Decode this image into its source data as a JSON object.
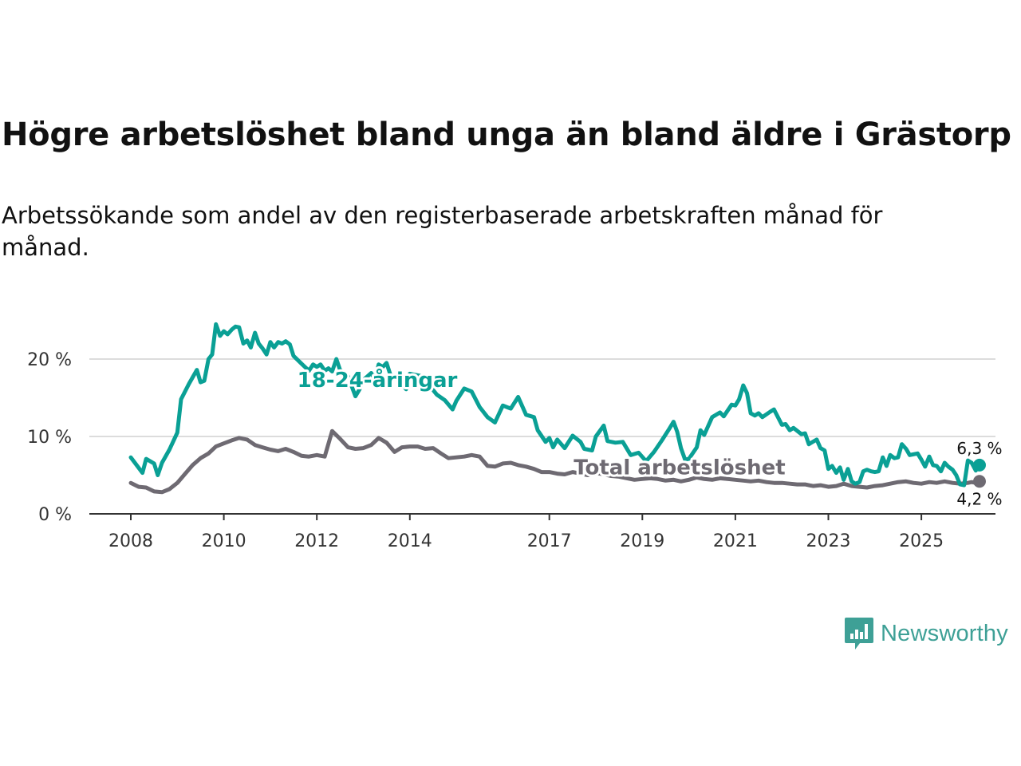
{
  "title": "Högre arbetslöshet bland unga än bland äldre i Grästorp",
  "subtitle": "Arbetssökande som andel av den registerbaserade arbetskraften månad för månad.",
  "brand": "Newsworthy",
  "colors": {
    "youth": "#0aa095",
    "total": "#6e6a72",
    "grid": "#dcdcdc",
    "axis": "#333333",
    "brand": "#3ea096"
  },
  "chart_data": {
    "type": "line",
    "title": "Högre arbetslöshet bland unga än bland äldre i Grästorp",
    "xlabel": "",
    "ylabel": "",
    "x_ticks": [
      "2008",
      "2010",
      "2012",
      "2014",
      "2017",
      "2019",
      "2021",
      "2023",
      "2025"
    ],
    "y_ticks": [
      "0 %",
      "10 %",
      "20 %"
    ],
    "ylim": [
      0,
      27
    ],
    "xlim": [
      2007.6,
      2026.1
    ],
    "grid": true,
    "series": [
      {
        "name": "18-24-åringar",
        "color": "#0aa095",
        "end_label": "6,3 %",
        "points": [
          [
            2008.0,
            7.3
          ],
          [
            2008.25,
            5.3
          ],
          [
            2008.33,
            7.1
          ],
          [
            2008.5,
            6.5
          ],
          [
            2008.58,
            5.0
          ],
          [
            2008.67,
            6.6
          ],
          [
            2008.83,
            8.3
          ],
          [
            2009.0,
            10.5
          ],
          [
            2009.08,
            14.8
          ],
          [
            2009.25,
            16.8
          ],
          [
            2009.42,
            18.6
          ],
          [
            2009.5,
            17.0
          ],
          [
            2009.58,
            17.2
          ],
          [
            2009.67,
            20.0
          ],
          [
            2009.75,
            20.6
          ],
          [
            2009.83,
            24.5
          ],
          [
            2009.92,
            23.0
          ],
          [
            2010.0,
            23.6
          ],
          [
            2010.08,
            23.2
          ],
          [
            2010.17,
            23.8
          ],
          [
            2010.25,
            24.2
          ],
          [
            2010.33,
            24.1
          ],
          [
            2010.42,
            22.0
          ],
          [
            2010.5,
            22.4
          ],
          [
            2010.58,
            21.5
          ],
          [
            2010.67,
            23.4
          ],
          [
            2010.75,
            22.0
          ],
          [
            2010.83,
            21.4
          ],
          [
            2010.92,
            20.6
          ],
          [
            2011.0,
            22.2
          ],
          [
            2011.08,
            21.5
          ],
          [
            2011.17,
            22.2
          ],
          [
            2011.25,
            22.0
          ],
          [
            2011.33,
            22.3
          ],
          [
            2011.42,
            21.9
          ],
          [
            2011.5,
            20.4
          ],
          [
            2011.67,
            19.4
          ],
          [
            2011.83,
            18.5
          ],
          [
            2011.92,
            19.3
          ],
          [
            2012.0,
            19.0
          ],
          [
            2012.08,
            19.3
          ],
          [
            2012.17,
            18.5
          ],
          [
            2012.25,
            18.8
          ],
          [
            2012.33,
            18.4
          ],
          [
            2012.42,
            20.0
          ],
          [
            2012.5,
            18.6
          ],
          [
            2012.67,
            17.8
          ],
          [
            2012.75,
            16.5
          ],
          [
            2012.83,
            15.2
          ],
          [
            2012.92,
            16.1
          ],
          [
            2013.0,
            17.3
          ],
          [
            2013.17,
            18.2
          ],
          [
            2013.25,
            17.4
          ],
          [
            2013.33,
            19.3
          ],
          [
            2013.42,
            19.0
          ],
          [
            2013.5,
            19.5
          ],
          [
            2013.58,
            18.0
          ],
          [
            2013.75,
            17.3
          ],
          [
            2013.92,
            16.1
          ],
          [
            2014.0,
            18.1
          ],
          [
            2014.25,
            17.8
          ],
          [
            2014.42,
            16.6
          ],
          [
            2014.58,
            15.4
          ],
          [
            2014.75,
            14.7
          ],
          [
            2014.92,
            13.5
          ],
          [
            2015.0,
            14.6
          ],
          [
            2015.17,
            16.2
          ],
          [
            2015.33,
            15.8
          ],
          [
            2015.5,
            13.8
          ],
          [
            2015.67,
            12.5
          ],
          [
            2015.83,
            11.8
          ],
          [
            2016.0,
            14.0
          ],
          [
            2016.17,
            13.6
          ],
          [
            2016.33,
            15.1
          ],
          [
            2016.5,
            12.8
          ],
          [
            2016.67,
            12.5
          ],
          [
            2016.75,
            10.8
          ],
          [
            2016.92,
            9.3
          ],
          [
            2017.0,
            9.8
          ],
          [
            2017.08,
            8.6
          ],
          [
            2017.17,
            9.6
          ],
          [
            2017.33,
            8.5
          ],
          [
            2017.5,
            10.1
          ],
          [
            2017.67,
            9.3
          ],
          [
            2017.75,
            8.4
          ],
          [
            2017.92,
            8.2
          ],
          [
            2018.0,
            10.0
          ],
          [
            2018.17,
            11.4
          ],
          [
            2018.25,
            9.4
          ],
          [
            2018.42,
            9.2
          ],
          [
            2018.58,
            9.3
          ],
          [
            2018.75,
            7.6
          ],
          [
            2018.92,
            7.9
          ],
          [
            2019.08,
            6.8
          ],
          [
            2019.25,
            8.0
          ],
          [
            2019.42,
            9.5
          ],
          [
            2019.58,
            11.0
          ],
          [
            2019.67,
            11.9
          ],
          [
            2019.75,
            10.6
          ],
          [
            2019.83,
            8.5
          ],
          [
            2019.92,
            7.0
          ],
          [
            2020.0,
            7.1
          ],
          [
            2020.17,
            8.6
          ],
          [
            2020.25,
            10.8
          ],
          [
            2020.33,
            10.2
          ],
          [
            2020.5,
            12.5
          ],
          [
            2020.67,
            13.1
          ],
          [
            2020.75,
            12.6
          ],
          [
            2020.92,
            14.1
          ],
          [
            2021.0,
            14.0
          ],
          [
            2021.08,
            14.8
          ],
          [
            2021.17,
            16.6
          ],
          [
            2021.25,
            15.6
          ],
          [
            2021.33,
            13.0
          ],
          [
            2021.42,
            12.7
          ],
          [
            2021.5,
            13.0
          ],
          [
            2021.58,
            12.5
          ],
          [
            2021.75,
            13.2
          ],
          [
            2021.83,
            13.5
          ],
          [
            2022.0,
            11.5
          ],
          [
            2022.08,
            11.6
          ],
          [
            2022.17,
            10.8
          ],
          [
            2022.25,
            11.1
          ],
          [
            2022.42,
            10.3
          ],
          [
            2022.5,
            10.4
          ],
          [
            2022.58,
            9.0
          ],
          [
            2022.75,
            9.6
          ],
          [
            2022.83,
            8.5
          ],
          [
            2022.92,
            8.2
          ],
          [
            2023.0,
            5.8
          ],
          [
            2023.08,
            6.2
          ],
          [
            2023.17,
            5.3
          ],
          [
            2023.25,
            6.0
          ],
          [
            2023.33,
            4.4
          ],
          [
            2023.42,
            5.8
          ],
          [
            2023.5,
            4.2
          ],
          [
            2023.58,
            3.9
          ],
          [
            2023.67,
            4.1
          ],
          [
            2023.75,
            5.5
          ],
          [
            2023.83,
            5.7
          ],
          [
            2023.92,
            5.5
          ],
          [
            2024.0,
            5.4
          ],
          [
            2024.08,
            5.5
          ],
          [
            2024.17,
            7.3
          ],
          [
            2024.25,
            6.2
          ],
          [
            2024.33,
            7.6
          ],
          [
            2024.42,
            7.2
          ],
          [
            2024.5,
            7.3
          ],
          [
            2024.58,
            9.0
          ],
          [
            2024.67,
            8.4
          ],
          [
            2024.75,
            7.6
          ],
          [
            2024.92,
            7.8
          ],
          [
            2025.0,
            7.0
          ],
          [
            2025.08,
            6.1
          ],
          [
            2025.17,
            7.4
          ],
          [
            2025.25,
            6.3
          ],
          [
            2025.33,
            6.2
          ],
          [
            2025.42,
            5.5
          ],
          [
            2025.5,
            6.6
          ],
          [
            2025.58,
            6.1
          ],
          [
            2025.67,
            5.7
          ],
          [
            2025.75,
            5.0
          ],
          [
            2025.83,
            3.8
          ],
          [
            2025.92,
            3.7
          ],
          [
            2026.0,
            6.9
          ],
          [
            2026.08,
            6.6
          ],
          [
            2026.17,
            5.6
          ],
          [
            2026.25,
            6.3
          ]
        ]
      },
      {
        "name": "Total arbetslöshet",
        "color": "#6e6a72",
        "end_label": "4,2 %",
        "points": [
          [
            2008.0,
            4.0
          ],
          [
            2008.17,
            3.5
          ],
          [
            2008.33,
            3.4
          ],
          [
            2008.5,
            2.9
          ],
          [
            2008.67,
            2.8
          ],
          [
            2008.83,
            3.2
          ],
          [
            2009.0,
            4.0
          ],
          [
            2009.17,
            5.2
          ],
          [
            2009.33,
            6.3
          ],
          [
            2009.5,
            7.2
          ],
          [
            2009.67,
            7.8
          ],
          [
            2009.83,
            8.7
          ],
          [
            2010.0,
            9.1
          ],
          [
            2010.17,
            9.5
          ],
          [
            2010.33,
            9.8
          ],
          [
            2010.5,
            9.6
          ],
          [
            2010.67,
            8.9
          ],
          [
            2010.83,
            8.6
          ],
          [
            2011.0,
            8.3
          ],
          [
            2011.17,
            8.1
          ],
          [
            2011.33,
            8.4
          ],
          [
            2011.5,
            8.0
          ],
          [
            2011.67,
            7.5
          ],
          [
            2011.83,
            7.4
          ],
          [
            2012.0,
            7.6
          ],
          [
            2012.17,
            7.4
          ],
          [
            2012.33,
            10.7
          ],
          [
            2012.5,
            9.7
          ],
          [
            2012.67,
            8.6
          ],
          [
            2012.83,
            8.4
          ],
          [
            2013.0,
            8.5
          ],
          [
            2013.17,
            8.9
          ],
          [
            2013.33,
            9.8
          ],
          [
            2013.5,
            9.2
          ],
          [
            2013.67,
            8.0
          ],
          [
            2013.83,
            8.6
          ],
          [
            2014.0,
            8.7
          ],
          [
            2014.17,
            8.7
          ],
          [
            2014.33,
            8.4
          ],
          [
            2014.5,
            8.5
          ],
          [
            2014.67,
            7.8
          ],
          [
            2014.83,
            7.2
          ],
          [
            2015.0,
            7.3
          ],
          [
            2015.17,
            7.4
          ],
          [
            2015.33,
            7.6
          ],
          [
            2015.5,
            7.4
          ],
          [
            2015.67,
            6.2
          ],
          [
            2015.83,
            6.1
          ],
          [
            2016.0,
            6.5
          ],
          [
            2016.17,
            6.6
          ],
          [
            2016.33,
            6.3
          ],
          [
            2016.5,
            6.1
          ],
          [
            2016.67,
            5.8
          ],
          [
            2016.83,
            5.4
          ],
          [
            2017.0,
            5.4
          ],
          [
            2017.17,
            5.2
          ],
          [
            2017.33,
            5.1
          ],
          [
            2017.5,
            5.4
          ],
          [
            2017.67,
            5.2
          ],
          [
            2017.83,
            5.0
          ],
          [
            2018.0,
            5.3
          ],
          [
            2018.17,
            5.1
          ],
          [
            2018.33,
            4.9
          ],
          [
            2018.5,
            4.8
          ],
          [
            2018.67,
            4.6
          ],
          [
            2018.83,
            4.4
          ],
          [
            2019.0,
            4.5
          ],
          [
            2019.17,
            4.6
          ],
          [
            2019.33,
            4.5
          ],
          [
            2019.5,
            4.3
          ],
          [
            2019.67,
            4.4
          ],
          [
            2019.83,
            4.2
          ],
          [
            2020.0,
            4.4
          ],
          [
            2020.17,
            4.7
          ],
          [
            2020.33,
            4.5
          ],
          [
            2020.5,
            4.4
          ],
          [
            2020.67,
            4.6
          ],
          [
            2020.83,
            4.5
          ],
          [
            2021.0,
            4.4
          ],
          [
            2021.17,
            4.3
          ],
          [
            2021.33,
            4.2
          ],
          [
            2021.5,
            4.3
          ],
          [
            2021.67,
            4.1
          ],
          [
            2021.83,
            4.0
          ],
          [
            2022.0,
            4.0
          ],
          [
            2022.17,
            3.9
          ],
          [
            2022.33,
            3.8
          ],
          [
            2022.5,
            3.8
          ],
          [
            2022.67,
            3.6
          ],
          [
            2022.83,
            3.7
          ],
          [
            2023.0,
            3.5
          ],
          [
            2023.17,
            3.6
          ],
          [
            2023.33,
            3.9
          ],
          [
            2023.5,
            3.6
          ],
          [
            2023.67,
            3.5
          ],
          [
            2023.83,
            3.4
          ],
          [
            2024.0,
            3.6
          ],
          [
            2024.17,
            3.7
          ],
          [
            2024.33,
            3.9
          ],
          [
            2024.5,
            4.1
          ],
          [
            2024.67,
            4.2
          ],
          [
            2024.83,
            4.0
          ],
          [
            2025.0,
            3.9
          ],
          [
            2025.17,
            4.1
          ],
          [
            2025.33,
            4.0
          ],
          [
            2025.5,
            4.2
          ],
          [
            2025.67,
            4.0
          ],
          [
            2025.83,
            3.9
          ],
          [
            2026.0,
            4.0
          ],
          [
            2026.08,
            4.1
          ],
          [
            2026.17,
            4.0
          ],
          [
            2026.25,
            4.2
          ]
        ]
      }
    ],
    "annotations": [
      {
        "text": "18-24-åringar",
        "series": "18-24-åringar",
        "x": 2013.3,
        "y": 16.4
      },
      {
        "text": "Total arbetslöshet",
        "series": "Total arbetslöshet",
        "x": 2019.8,
        "y": 5.1
      }
    ]
  }
}
